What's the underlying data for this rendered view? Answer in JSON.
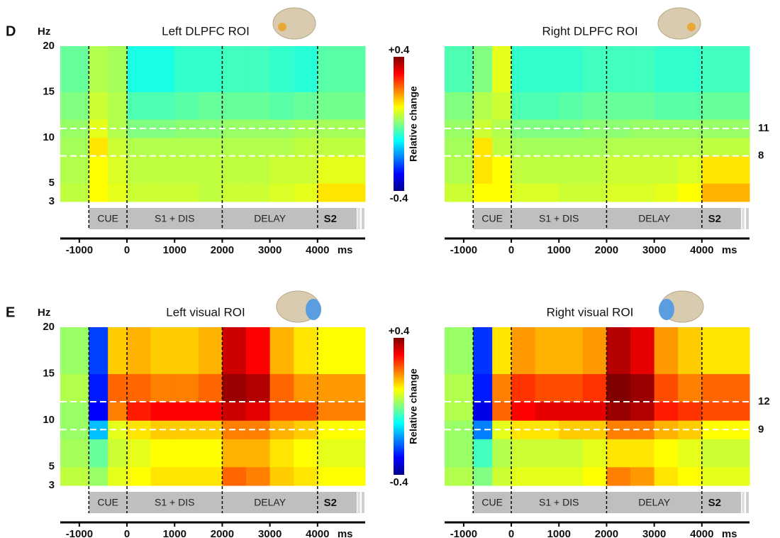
{
  "chart_data": [
    {
      "type": "heatmap",
      "panel": "D",
      "title": "Left DLPFC ROI",
      "y_label": "Hz",
      "x_unit": "ms",
      "xbins": [
        -1400,
        -800,
        -400,
        0,
        500,
        1000,
        1500,
        2000,
        2500,
        3000,
        3500,
        4000,
        5000
      ],
      "ybins": [
        3,
        5,
        8,
        10,
        12,
        15,
        20
      ],
      "z": [
        [
          0.05,
          0.1,
          0.08,
          0.06,
          0.06,
          0.06,
          0.05,
          0.06,
          0.06,
          0.07,
          0.08,
          0.12
        ],
        [
          0.04,
          0.1,
          0.07,
          0.05,
          0.05,
          0.05,
          0.05,
          0.05,
          0.05,
          0.06,
          0.06,
          0.08
        ],
        [
          0.03,
          0.12,
          0.06,
          0.04,
          0.04,
          0.04,
          0.04,
          0.04,
          0.04,
          0.04,
          0.05,
          0.05
        ],
        [
          0.02,
          0.08,
          0.04,
          0.0,
          0.0,
          0.01,
          0.01,
          0.02,
          0.02,
          0.02,
          0.03,
          0.03
        ],
        [
          0.0,
          0.06,
          0.04,
          -0.04,
          -0.04,
          -0.03,
          -0.02,
          -0.02,
          -0.02,
          -0.03,
          -0.02,
          -0.01
        ],
        [
          -0.02,
          0.04,
          0.03,
          -0.08,
          -0.08,
          -0.06,
          -0.06,
          -0.05,
          -0.05,
          -0.06,
          -0.07,
          -0.03
        ]
      ],
      "xlim": [
        -1400,
        5000
      ],
      "ylim": [
        3,
        20
      ],
      "xticks": [
        -1000,
        0,
        1000,
        2000,
        3000,
        4000
      ],
      "yticks": [
        3,
        5,
        10,
        15,
        20
      ],
      "epochs": [
        {
          "name": "CUE",
          "start": -800,
          "end": 0
        },
        {
          "name": "S1 + DIS",
          "start": 0,
          "end": 2000
        },
        {
          "name": "DELAY",
          "start": 2000,
          "end": 4000
        },
        {
          "name": "S2",
          "start": 4000,
          "end": 5000
        }
      ],
      "bands": [
        11,
        8
      ],
      "zlim": [
        -0.4,
        0.4
      ],
      "colorbar": {
        "label": "Relative change",
        "ticks": [
          {
            "value": 0.4,
            "label": "+0.4"
          },
          -0.4
        ]
      }
    },
    {
      "type": "heatmap",
      "title": "Right DLPFC ROI",
      "x_unit": "ms",
      "xbins": [
        -1400,
        -800,
        -400,
        0,
        500,
        1000,
        1500,
        2000,
        2500,
        3000,
        3500,
        4000,
        5000
      ],
      "ybins": [
        3,
        5,
        8,
        10,
        12,
        15,
        20
      ],
      "z": [
        [
          0.06,
          0.1,
          0.1,
          0.07,
          0.07,
          0.06,
          0.06,
          0.07,
          0.07,
          0.08,
          0.1,
          0.16
        ],
        [
          0.04,
          0.12,
          0.1,
          0.05,
          0.05,
          0.05,
          0.05,
          0.06,
          0.06,
          0.06,
          0.07,
          0.12
        ],
        [
          0.03,
          0.12,
          0.05,
          0.03,
          0.03,
          0.03,
          0.03,
          0.04,
          0.04,
          0.04,
          0.04,
          0.05
        ],
        [
          0.02,
          0.06,
          0.04,
          0.0,
          0.0,
          0.0,
          0.01,
          0.01,
          0.02,
          0.02,
          0.02,
          0.02
        ],
        [
          0.0,
          0.04,
          0.06,
          -0.04,
          -0.04,
          -0.03,
          -0.02,
          -0.02,
          -0.02,
          -0.03,
          -0.03,
          -0.02
        ],
        [
          -0.04,
          0.0,
          0.08,
          -0.06,
          -0.06,
          -0.06,
          -0.05,
          -0.05,
          -0.05,
          -0.06,
          -0.06,
          -0.05
        ]
      ],
      "xlim": [
        -1400,
        5000
      ],
      "ylim": [
        3,
        20
      ],
      "xticks": [
        -1000,
        0,
        1000,
        2000,
        3000,
        4000
      ],
      "epochs": [
        {
          "name": "CUE",
          "start": -800,
          "end": 0
        },
        {
          "name": "S1 + DIS",
          "start": 0,
          "end": 2000
        },
        {
          "name": "DELAY",
          "start": 2000,
          "end": 4000
        },
        {
          "name": "S2",
          "start": 4000,
          "end": 5000
        }
      ],
      "bands": [
        11,
        8
      ],
      "band_labels": true,
      "zlim": [
        -0.4,
        0.4
      ]
    },
    {
      "type": "heatmap",
      "panel": "E",
      "title": "Left visual ROI",
      "y_label": "Hz",
      "x_unit": "ms",
      "xbins": [
        -1400,
        -800,
        -400,
        0,
        500,
        1000,
        1500,
        2000,
        2500,
        3000,
        3500,
        4000,
        5000
      ],
      "ybins": [
        3,
        5,
        8,
        10,
        12,
        15,
        20
      ],
      "z": [
        [
          0.05,
          0.02,
          0.08,
          0.1,
          0.12,
          0.12,
          0.12,
          0.22,
          0.2,
          0.14,
          0.12,
          0.1
        ],
        [
          0.03,
          -0.02,
          0.06,
          0.08,
          0.1,
          0.1,
          0.1,
          0.16,
          0.16,
          0.12,
          0.1,
          0.08
        ],
        [
          0.02,
          -0.15,
          0.08,
          0.12,
          0.14,
          0.14,
          0.14,
          0.2,
          0.2,
          0.16,
          0.14,
          0.1
        ],
        [
          0.02,
          -0.3,
          0.2,
          0.28,
          0.3,
          0.3,
          0.3,
          0.34,
          0.32,
          0.24,
          0.24,
          0.2
        ],
        [
          0.04,
          -0.28,
          0.22,
          0.22,
          0.2,
          0.2,
          0.22,
          0.38,
          0.36,
          0.22,
          0.18,
          0.18
        ],
        [
          0.02,
          -0.25,
          0.14,
          0.16,
          0.14,
          0.14,
          0.16,
          0.34,
          0.3,
          0.16,
          0.12,
          0.1
        ]
      ],
      "xlim": [
        -1400,
        5000
      ],
      "ylim": [
        3,
        20
      ],
      "xticks": [
        -1000,
        0,
        1000,
        2000,
        3000,
        4000
      ],
      "yticks": [
        3,
        5,
        10,
        15,
        20
      ],
      "epochs": [
        {
          "name": "CUE",
          "start": -800,
          "end": 0
        },
        {
          "name": "S1 + DIS",
          "start": 0,
          "end": 2000
        },
        {
          "name": "DELAY",
          "start": 2000,
          "end": 4000
        },
        {
          "name": "S2",
          "start": 4000,
          "end": 5000
        }
      ],
      "bands": [
        12,
        9
      ],
      "zlim": [
        -0.4,
        0.4
      ],
      "colorbar": {
        "label": "Relative change",
        "ticks": [
          {
            "value": 0.4,
            "label": "+0.4"
          },
          -0.4
        ]
      }
    },
    {
      "type": "heatmap",
      "title": "Right visual ROI",
      "x_unit": "ms",
      "xbins": [
        -1400,
        -800,
        -400,
        0,
        500,
        1000,
        1500,
        2000,
        2500,
        3000,
        3500,
        4000,
        5000
      ],
      "ybins": [
        3,
        5,
        8,
        10,
        12,
        15,
        20
      ],
      "z": [
        [
          0.04,
          0.0,
          0.06,
          0.08,
          0.08,
          0.08,
          0.1,
          0.2,
          0.18,
          0.12,
          0.1,
          0.08
        ],
        [
          0.02,
          -0.05,
          0.04,
          0.06,
          0.06,
          0.06,
          0.08,
          0.12,
          0.12,
          0.1,
          0.08,
          0.06
        ],
        [
          0.02,
          -0.2,
          0.08,
          0.12,
          0.12,
          0.14,
          0.14,
          0.2,
          0.2,
          0.16,
          0.14,
          0.1
        ],
        [
          0.04,
          -0.32,
          0.22,
          0.3,
          0.32,
          0.32,
          0.32,
          0.38,
          0.36,
          0.28,
          0.26,
          0.24
        ],
        [
          0.04,
          -0.28,
          0.2,
          0.26,
          0.24,
          0.24,
          0.26,
          0.4,
          0.38,
          0.24,
          0.2,
          0.22
        ],
        [
          0.02,
          -0.26,
          0.12,
          0.18,
          0.16,
          0.16,
          0.18,
          0.36,
          0.32,
          0.18,
          0.14,
          0.12
        ]
      ],
      "xlim": [
        -1400,
        5000
      ],
      "ylim": [
        3,
        20
      ],
      "xticks": [
        -1000,
        0,
        1000,
        2000,
        3000,
        4000
      ],
      "epochs": [
        {
          "name": "CUE",
          "start": -800,
          "end": 0
        },
        {
          "name": "S1 + DIS",
          "start": 0,
          "end": 2000
        },
        {
          "name": "DELAY",
          "start": 2000,
          "end": 4000
        },
        {
          "name": "S2",
          "start": 4000,
          "end": 5000
        }
      ],
      "bands": [
        12,
        9
      ],
      "band_labels": true,
      "zlim": [
        -0.4,
        0.4
      ]
    }
  ]
}
